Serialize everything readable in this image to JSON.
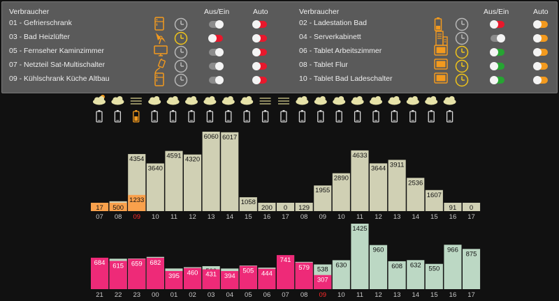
{
  "colors": {
    "panel_bg": "#5a5a5a",
    "chart_bg": "#111111",
    "accent_orange": "#f39a1e",
    "toggle_on_red": "#e8182c",
    "toggle_on_green": "#26a532",
    "toggle_off": "#8c8c8c",
    "icon_yellow": "#f0c419",
    "icon_gray": "#b8b8b8",
    "bar_top": "#d0d0b4",
    "bar_top_orange": "#f9a14c",
    "bar_bottom": "#bcd8c4",
    "bar_bottom_pink": "#ee2a78",
    "hour_red": "#ff2a2a"
  },
  "panel": {
    "headers": {
      "device": "Verbraucher",
      "onoff": "Aus/Ein",
      "auto": "Auto"
    },
    "left": [
      {
        "name": "01 - Gefrierschrank",
        "icon": "fridge-icon",
        "clock_active": false,
        "onoff": "off",
        "auto": "on-red"
      },
      {
        "name": "03 - Bad Heizlüfter",
        "icon": "fan-heater-icon",
        "clock_active": true,
        "onoff": "on-red",
        "auto": "on-red"
      },
      {
        "name": "05 - Fernseher Kaminzimmer",
        "icon": "tv-icon",
        "clock_active": false,
        "onoff": "off",
        "auto": "on-red"
      },
      {
        "name": "07 - Netzteil Sat-Multischalter",
        "icon": "power-supply-icon",
        "clock_active": false,
        "onoff": "off",
        "auto": "on-red"
      },
      {
        "name": "09 - Kühlschrank Küche Altbau",
        "icon": "fridge-icon",
        "clock_active": false,
        "onoff": "off",
        "auto": "on-red"
      }
    ],
    "right": [
      {
        "name": "02 - Ladestation Bad",
        "icon": "battery-icon",
        "clock_active": false,
        "onoff": "on-red",
        "auto": "on-orange"
      },
      {
        "name": "04 - Serverkabinett",
        "icon": "server-icon",
        "clock_active": false,
        "onoff": "off",
        "auto": "on-orange"
      },
      {
        "name": "06 - Tablet Arbeitszimmer",
        "icon": "tablet-icon",
        "clock_active": true,
        "onoff": "on-green",
        "auto": "on-orange"
      },
      {
        "name": "08 - Tablet Flur",
        "icon": "tablet-icon",
        "clock_active": true,
        "onoff": "on-green",
        "auto": "on-orange"
      },
      {
        "name": "10 - Tablet Bad Ladeschalter",
        "icon": "tablet-icon",
        "clock_active": true,
        "onoff": "on-green",
        "auto": "on-orange"
      }
    ]
  },
  "forecast": {
    "weather_icons": [
      "sun-cloud-icon",
      "cloud-icon",
      "fog-icon",
      "cloud-icon",
      "cloud-icon",
      "cloud-icon",
      "cloud-icon",
      "cloud-icon",
      "cloud-icon",
      "fog-icon",
      "fog-icon",
      "cloud-icon",
      "cloud-icon",
      "cloud-icon",
      "cloud-icon",
      "cloud-icon",
      "cloud-icon",
      "cloud-icon",
      "cloud-icon",
      "cloud-icon"
    ],
    "battery_icons": [
      {
        "state": "empty"
      },
      {
        "state": "empty"
      },
      {
        "state": "charging"
      },
      {
        "state": "empty"
      },
      {
        "state": "empty"
      },
      {
        "state": "empty"
      },
      {
        "state": "empty"
      },
      {
        "state": "empty"
      },
      {
        "state": "empty"
      },
      {
        "state": "empty"
      },
      {
        "state": "empty"
      },
      {
        "state": "empty"
      },
      {
        "state": "empty"
      },
      {
        "state": "empty"
      },
      {
        "state": "empty"
      },
      {
        "state": "empty"
      },
      {
        "state": "empty"
      },
      {
        "state": "empty"
      },
      {
        "state": "empty"
      },
      {
        "state": "empty"
      }
    ]
  },
  "chart_data": [
    {
      "type": "bar",
      "title": "",
      "categories": [
        "07",
        "08",
        "09",
        "10",
        "11",
        "12",
        "13",
        "14",
        "15",
        "16",
        "17",
        "08",
        "09",
        "10",
        "11",
        "12",
        "13",
        "14",
        "15",
        "16",
        "17"
      ],
      "current_hour_index": 2,
      "series": [
        {
          "values": [
            null,
            752,
            4354,
            3640,
            4591,
            4320,
            6060,
            6017,
            1058,
            200,
            0,
            129,
            1955,
            2890,
            4633,
            3644,
            3911,
            2536,
            1607,
            91,
            0
          ]
        },
        {
          "values": [
            17,
            500,
            1233,
            null,
            null,
            null,
            null,
            null,
            null,
            null,
            null,
            null,
            null,
            null,
            null,
            null,
            null,
            null,
            null,
            null,
            null
          ]
        }
      ],
      "ylim": [
        0,
        6060
      ]
    },
    {
      "type": "bar",
      "title": "",
      "categories": [
        "21",
        "22",
        "23",
        "00",
        "01",
        "02",
        "03",
        "04",
        "05",
        "06",
        "07",
        "08",
        "09",
        "10",
        "11",
        "12",
        "13",
        "14",
        "15",
        "16",
        "17"
      ],
      "current_hour_index": 12,
      "series": [
        {
          "values": [
            572,
            662,
            667,
            702,
            450,
            478,
            500,
            449,
            514,
            468,
            736,
            594,
            538,
            630,
            1425,
            960,
            608,
            632,
            550,
            966,
            875
          ]
        },
        {
          "values": [
            684,
            615,
            659,
            682,
            395,
            460,
            431,
            394,
            505,
            444,
            741,
            579,
            307,
            null,
            null,
            null,
            null,
            null,
            null,
            null,
            null
          ]
        }
      ],
      "ylim": [
        0,
        1425
      ]
    }
  ]
}
